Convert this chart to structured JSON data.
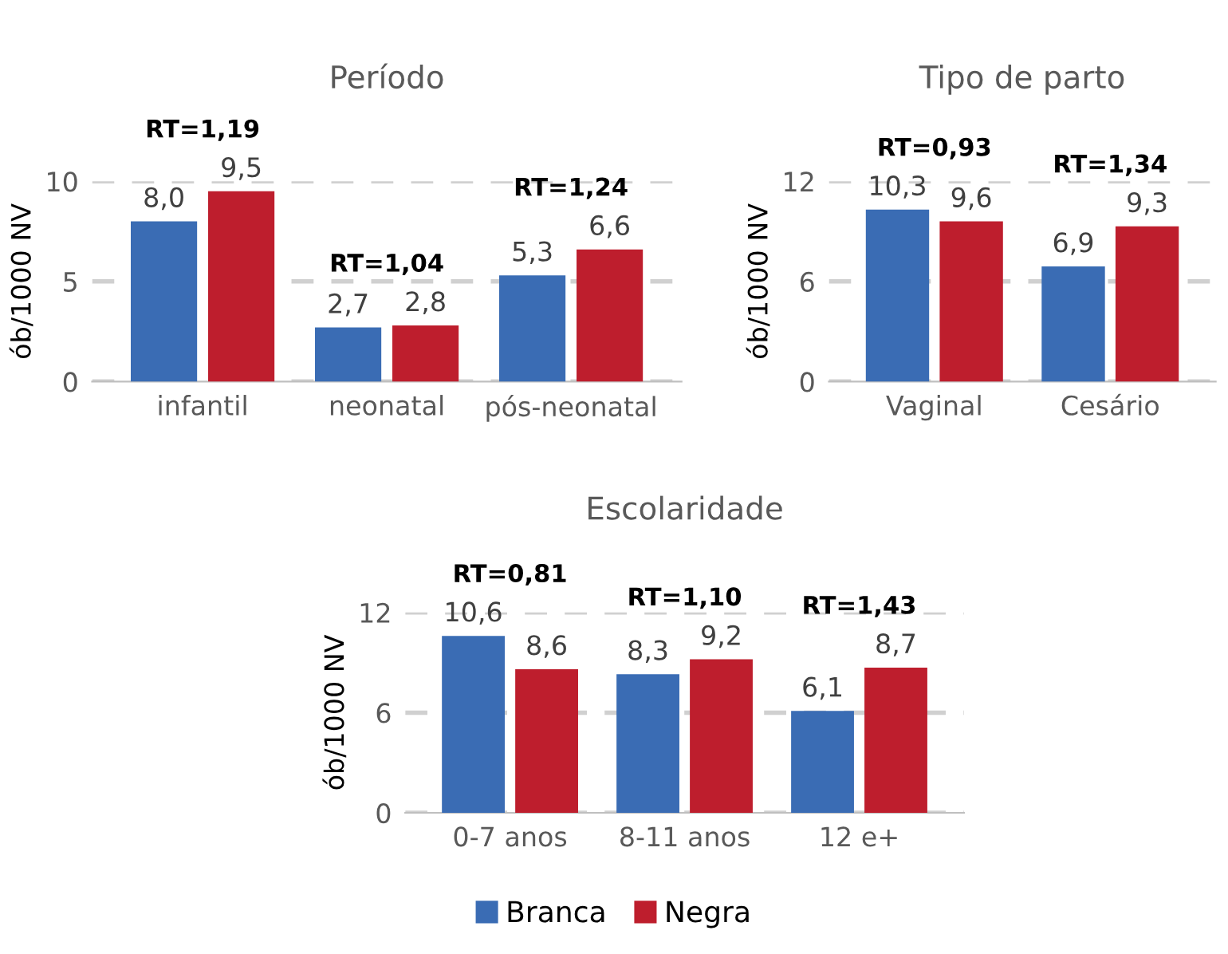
{
  "chart_data": [
    {
      "type": "bar",
      "title": "Período",
      "ylabel": "ób/1000 NV",
      "categories": [
        "infantil",
        "neonatal",
        "pós-neonatal"
      ],
      "series": [
        {
          "name": "Branca",
          "color": "#3a6cb4",
          "values": [
            8.0,
            2.7,
            5.3
          ],
          "value_labels": [
            "8,0",
            "2,7",
            "5,3"
          ]
        },
        {
          "name": "Negra",
          "color": "#be1e2d",
          "values": [
            9.5,
            2.8,
            6.6
          ],
          "value_labels": [
            "9,5",
            "2,8",
            "6,6"
          ]
        }
      ],
      "ylim": [
        0,
        10
      ],
      "yticks": [
        0,
        5,
        10
      ],
      "grid": "y",
      "legend": "bottom",
      "annotations": [
        "RT=1,19",
        "RT=1,04",
        "RT=1,24"
      ]
    },
    {
      "type": "bar",
      "title": "Tipo de parto",
      "ylabel": "ób/1000 NV",
      "categories": [
        "Vaginal",
        "Cesário"
      ],
      "series": [
        {
          "color": "#3a6cb4",
          "values": [
            10.3,
            6.9
          ],
          "value_labels": [
            "10,3",
            "6,9"
          ]
        },
        {
          "color": "#be1e2d",
          "values": [
            9.6,
            9.3
          ],
          "value_labels": [
            "9,6",
            "9,3"
          ]
        }
      ],
      "ylim": [
        0,
        12
      ],
      "yticks": [
        0,
        6,
        12
      ],
      "grid": "y",
      "annotations": [
        "RT=0,93",
        "RT=1,34"
      ]
    },
    {
      "type": "bar",
      "title": "Escolaridade",
      "ylabel": "ób/1000 NV",
      "categories": [
        "0-7 anos",
        "8-11 anos",
        "12 e+"
      ],
      "series": [
        {
          "color": "#3a6cb4",
          "values": [
            10.6,
            8.3,
            6.1
          ],
          "value_labels": [
            "10,6",
            "8,3",
            "6,1"
          ]
        },
        {
          "color": "#be1e2d",
          "values": [
            8.6,
            9.2,
            8.7
          ],
          "value_labels": [
            "8,6",
            "9,2",
            "8,7"
          ]
        }
      ],
      "ylim": [
        0,
        12
      ],
      "yticks": [
        0,
        6,
        12
      ],
      "grid": "y",
      "annotations": [
        "RT=0,81",
        "RT=1,10",
        "RT=1,43"
      ]
    }
  ]
}
